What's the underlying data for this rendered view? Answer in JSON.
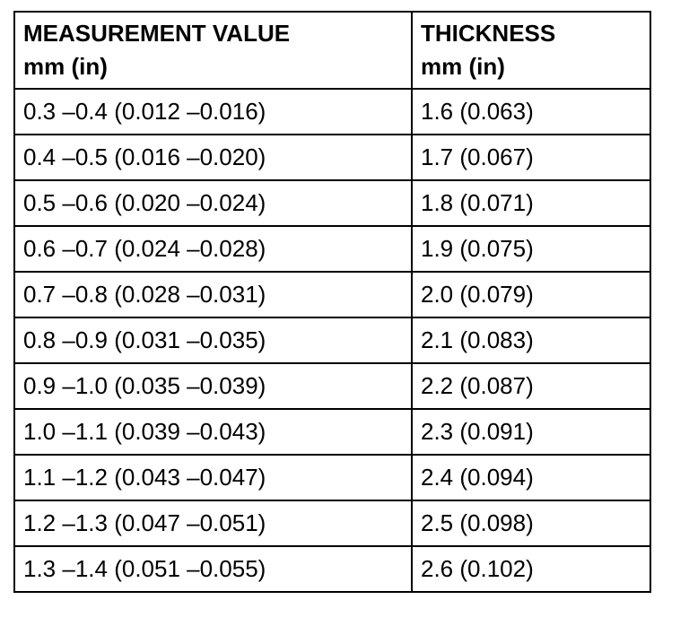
{
  "table": {
    "header": [
      [
        "MEASUREMENT VALUE",
        "mm (in)"
      ],
      [
        "THICKNESS",
        "mm (in)"
      ]
    ],
    "rows": [
      [
        "0.3 –0.4 (0.012 –0.016)",
        "1.6 (0.063)"
      ],
      [
        "0.4 –0.5 (0.016 –0.020)",
        "1.7 (0.067)"
      ],
      [
        "0.5 –0.6 (0.020 –0.024)",
        "1.8 (0.071)"
      ],
      [
        "0.6 –0.7 (0.024 –0.028)",
        "1.9 (0.075)"
      ],
      [
        "0.7 –0.8 (0.028 –0.031)",
        "2.0 (0.079)"
      ],
      [
        "0.8 –0.9 (0.031 –0.035)",
        "2.1 (0.083)"
      ],
      [
        "0.9 –1.0 (0.035 –0.039)",
        "2.2 (0.087)"
      ],
      [
        "1.0 –1.1 (0.039 –0.043)",
        "2.3 (0.091)"
      ],
      [
        "1.1 –1.2 (0.043 –0.047)",
        "2.4 (0.094)"
      ],
      [
        "1.2 –1.3 (0.047 –0.051)",
        "2.5 (0.098)"
      ],
      [
        "1.3 –1.4 (0.051 –0.055)",
        "2.6 (0.102)"
      ]
    ]
  }
}
